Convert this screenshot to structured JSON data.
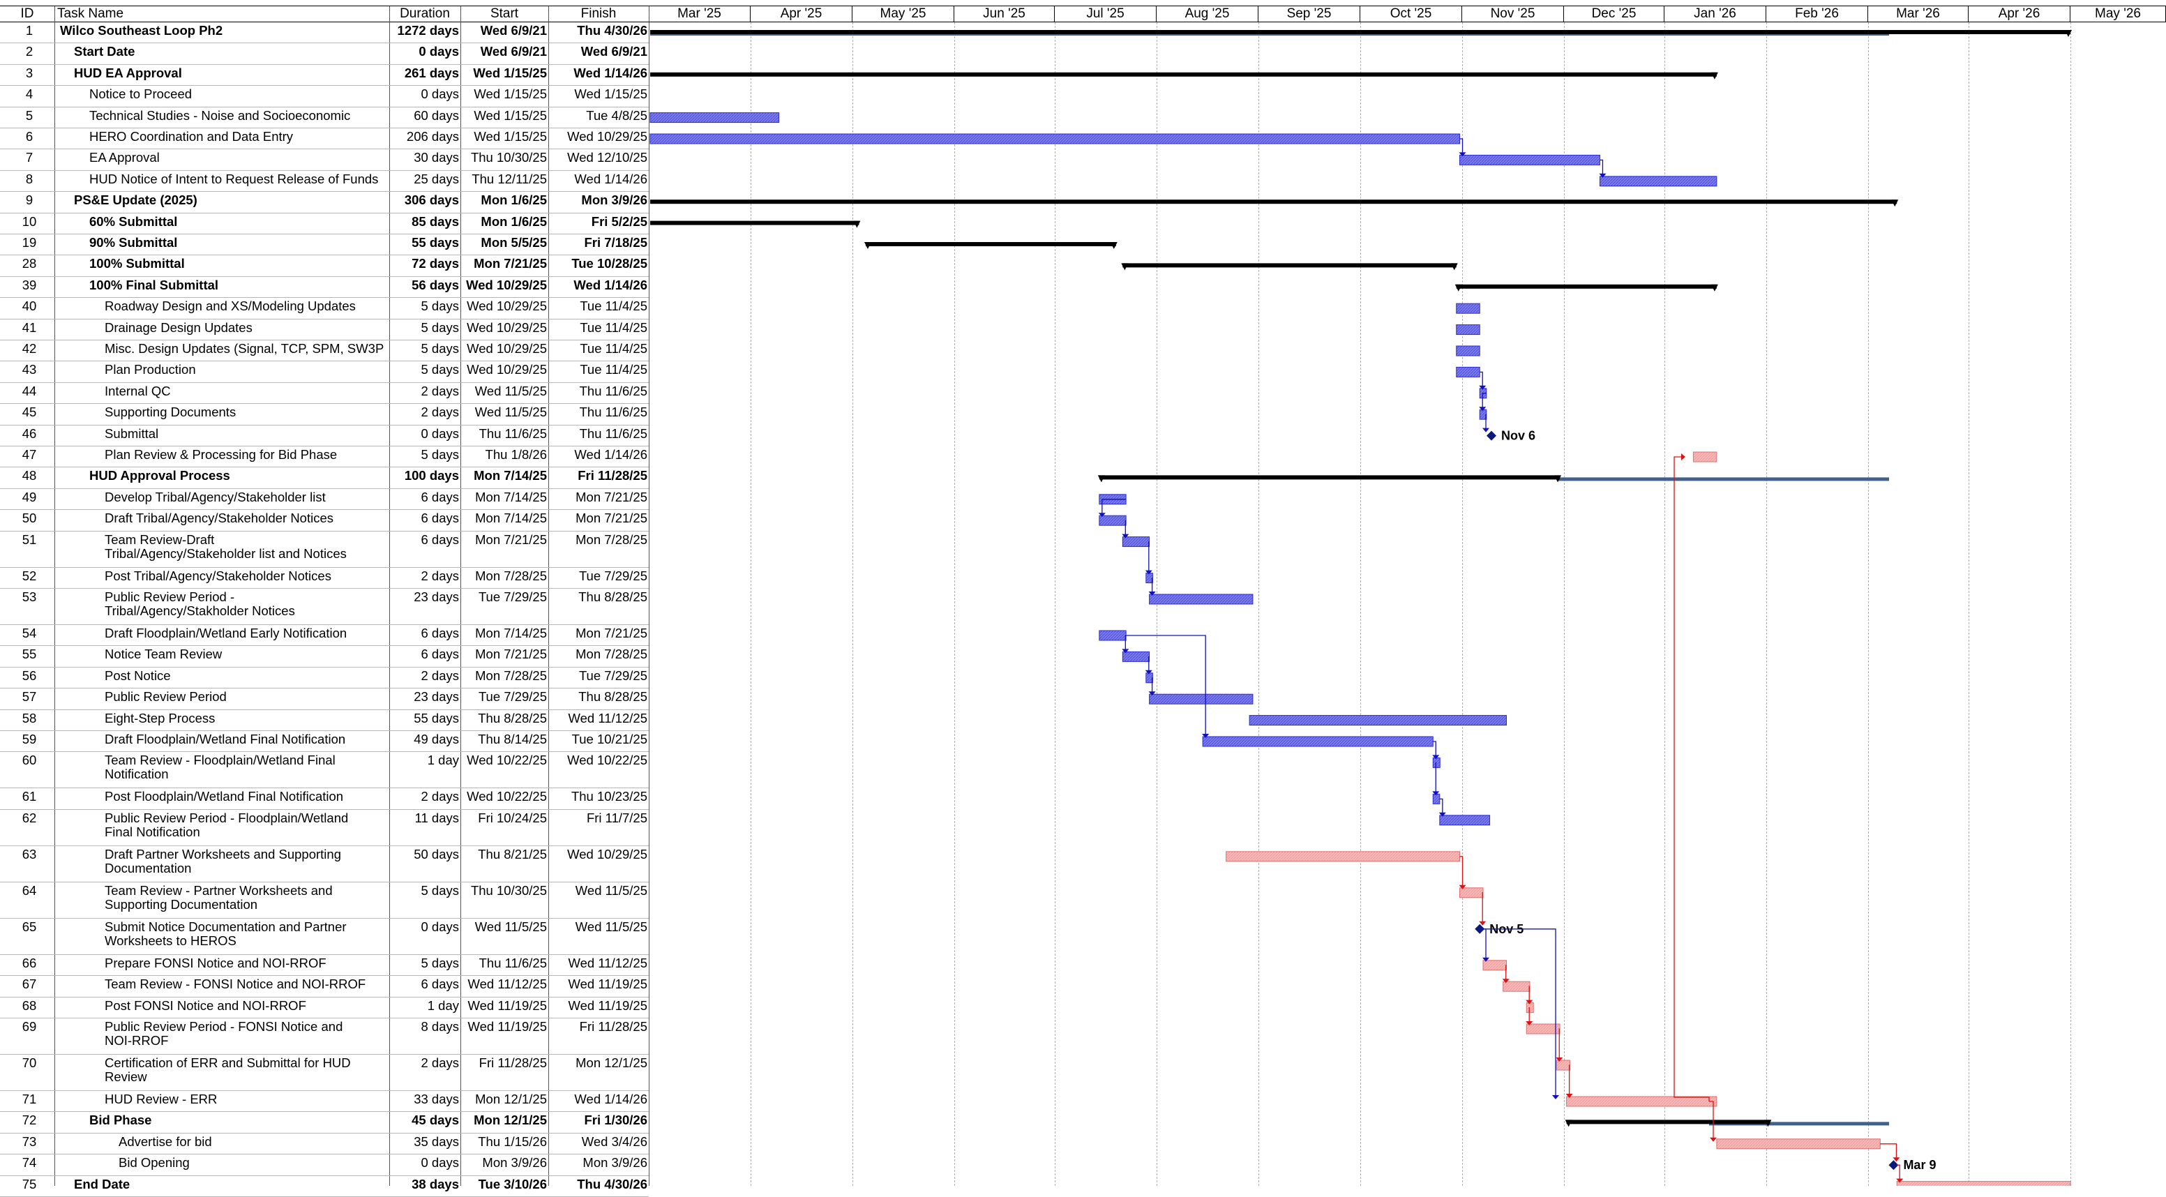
{
  "headers": {
    "id": "ID",
    "name": "Task Name",
    "duration": "Duration",
    "start": "Start",
    "finish": "Finish"
  },
  "timescale": [
    "Mar '25",
    "Apr '25",
    "May '25",
    "Jun '25",
    "Jul '25",
    "Aug '25",
    "Sep '25",
    "Oct '25",
    "Nov '25",
    "Dec '25",
    "Jan '26",
    "Feb '26",
    "Mar '26",
    "Apr '26",
    "May '26"
  ],
  "colors": {
    "task_bar": "#7b7bf0",
    "task_bar_border": "#2a2ad8",
    "critical_bar": "#f8b8b8",
    "critical_border": "#e07070",
    "summary_bar": "#000000",
    "baseline_bar": "#41608c",
    "link_blue": "#1010c0",
    "link_red": "#e01010",
    "milestone": "#0a1a7a"
  },
  "tasks": [
    {
      "id": "1",
      "name": "Wilco Southeast Loop Ph2",
      "duration": "1272 days",
      "start": "Wed 6/9/21",
      "finish": "Thu 4/30/26",
      "bold": true,
      "indent": 0
    },
    {
      "id": "2",
      "name": "Start Date",
      "duration": "0 days",
      "start": "Wed 6/9/21",
      "finish": "Wed 6/9/21",
      "bold": true,
      "indent": 1
    },
    {
      "id": "3",
      "name": "HUD EA Approval",
      "duration": "261 days",
      "start": "Wed 1/15/25",
      "finish": "Wed 1/14/26",
      "bold": true,
      "indent": 1
    },
    {
      "id": "4",
      "name": "Notice to Proceed",
      "duration": "0 days",
      "start": "Wed 1/15/25",
      "finish": "Wed 1/15/25",
      "bold": false,
      "indent": 2
    },
    {
      "id": "5",
      "name": "Technical Studies - Noise and Socioeconomic",
      "duration": "60 days",
      "start": "Wed 1/15/25",
      "finish": "Tue 4/8/25",
      "bold": false,
      "indent": 2
    },
    {
      "id": "6",
      "name": "HERO Coordination and Data Entry",
      "duration": "206 days",
      "start": "Wed 1/15/25",
      "finish": "Wed 10/29/25",
      "bold": false,
      "indent": 2
    },
    {
      "id": "7",
      "name": "EA Approval",
      "duration": "30 days",
      "start": "Thu 10/30/25",
      "finish": "Wed 12/10/25",
      "bold": false,
      "indent": 2
    },
    {
      "id": "8",
      "name": "HUD Notice of Intent to Request Release of Funds",
      "duration": "25 days",
      "start": "Thu 12/11/25",
      "finish": "Wed 1/14/26",
      "bold": false,
      "indent": 2
    },
    {
      "id": "9",
      "name": "PS&E Update (2025)",
      "duration": "306 days",
      "start": "Mon 1/6/25",
      "finish": "Mon 3/9/26",
      "bold": true,
      "indent": 1
    },
    {
      "id": "10",
      "name": "60% Submittal",
      "duration": "85 days",
      "start": "Mon 1/6/25",
      "finish": "Fri 5/2/25",
      "bold": true,
      "indent": 2
    },
    {
      "id": "19",
      "name": "90% Submittal",
      "duration": "55 days",
      "start": "Mon 5/5/25",
      "finish": "Fri 7/18/25",
      "bold": true,
      "indent": 2
    },
    {
      "id": "28",
      "name": "100% Submittal",
      "duration": "72 days",
      "start": "Mon 7/21/25",
      "finish": "Tue 10/28/25",
      "bold": true,
      "indent": 2
    },
    {
      "id": "39",
      "name": "100% Final Submittal",
      "duration": "56 days",
      "start": "Wed 10/29/25",
      "finish": "Wed 1/14/26",
      "bold": true,
      "indent": 2
    },
    {
      "id": "40",
      "name": "Roadway Design and XS/Modeling Updates",
      "duration": "5 days",
      "start": "Wed 10/29/25",
      "finish": "Tue 11/4/25",
      "bold": false,
      "indent": 3
    },
    {
      "id": "41",
      "name": "Drainage Design Updates",
      "duration": "5 days",
      "start": "Wed 10/29/25",
      "finish": "Tue 11/4/25",
      "bold": false,
      "indent": 3
    },
    {
      "id": "42",
      "name": "Misc. Design Updates (Signal, TCP, SPM, SW3P",
      "duration": "5 days",
      "start": "Wed 10/29/25",
      "finish": "Tue 11/4/25",
      "bold": false,
      "indent": 3
    },
    {
      "id": "43",
      "name": "Plan Production",
      "duration": "5 days",
      "start": "Wed 10/29/25",
      "finish": "Tue 11/4/25",
      "bold": false,
      "indent": 3
    },
    {
      "id": "44",
      "name": "Internal QC",
      "duration": "2 days",
      "start": "Wed 11/5/25",
      "finish": "Thu 11/6/25",
      "bold": false,
      "indent": 3
    },
    {
      "id": "45",
      "name": "Supporting Documents",
      "duration": "2 days",
      "start": "Wed 11/5/25",
      "finish": "Thu 11/6/25",
      "bold": false,
      "indent": 3
    },
    {
      "id": "46",
      "name": "Submittal",
      "duration": "0 days",
      "start": "Thu 11/6/25",
      "finish": "Thu 11/6/25",
      "bold": false,
      "indent": 3
    },
    {
      "id": "47",
      "name": "Plan Review & Processing for Bid Phase",
      "duration": "5 days",
      "start": "Thu 1/8/26",
      "finish": "Wed 1/14/26",
      "bold": false,
      "indent": 3
    },
    {
      "id": "48",
      "name": "HUD Approval Process",
      "duration": "100 days",
      "start": "Mon 7/14/25",
      "finish": "Fri 11/28/25",
      "bold": true,
      "indent": 2
    },
    {
      "id": "49",
      "name": "Develop Tribal/Agency/Stakeholder list",
      "duration": "6 days",
      "start": "Mon 7/14/25",
      "finish": "Mon 7/21/25",
      "bold": false,
      "indent": 3
    },
    {
      "id": "50",
      "name": "Draft Tribal/Agency/Stakeholder Notices",
      "duration": "6 days",
      "start": "Mon 7/14/25",
      "finish": "Mon 7/21/25",
      "bold": false,
      "indent": 3
    },
    {
      "id": "51",
      "name": "Team Review-Draft Tribal/Agency/Stakeholder list and Notices",
      "duration": "6 days",
      "start": "Mon 7/21/25",
      "finish": "Mon 7/28/25",
      "bold": false,
      "indent": 3
    },
    {
      "id": "52",
      "name": "Post Tribal/Agency/Stakeholder Notices",
      "duration": "2 days",
      "start": "Mon 7/28/25",
      "finish": "Tue 7/29/25",
      "bold": false,
      "indent": 3
    },
    {
      "id": "53",
      "name": "Public Review Period - Tribal/Agency/Stakholder Notices",
      "duration": "23 days",
      "start": "Tue 7/29/25",
      "finish": "Thu 8/28/25",
      "bold": false,
      "indent": 3
    },
    {
      "id": "54",
      "name": "Draft Floodplain/Wetland Early Notification",
      "duration": "6 days",
      "start": "Mon 7/14/25",
      "finish": "Mon 7/21/25",
      "bold": false,
      "indent": 3
    },
    {
      "id": "55",
      "name": "Notice Team Review",
      "duration": "6 days",
      "start": "Mon 7/21/25",
      "finish": "Mon 7/28/25",
      "bold": false,
      "indent": 3
    },
    {
      "id": "56",
      "name": "Post Notice",
      "duration": "2 days",
      "start": "Mon 7/28/25",
      "finish": "Tue 7/29/25",
      "bold": false,
      "indent": 3
    },
    {
      "id": "57",
      "name": "Public Review Period",
      "duration": "23 days",
      "start": "Tue 7/29/25",
      "finish": "Thu 8/28/25",
      "bold": false,
      "indent": 3
    },
    {
      "id": "58",
      "name": "Eight-Step Process",
      "duration": "55 days",
      "start": "Thu 8/28/25",
      "finish": "Wed 11/12/25",
      "bold": false,
      "indent": 3
    },
    {
      "id": "59",
      "name": "Draft Floodplain/Wetland Final Notification",
      "duration": "49 days",
      "start": "Thu 8/14/25",
      "finish": "Tue 10/21/25",
      "bold": false,
      "indent": 3
    },
    {
      "id": "60",
      "name": "Team Review - Floodplain/Wetland Final Notification",
      "duration": "1 day",
      "start": "Wed 10/22/25",
      "finish": "Wed 10/22/25",
      "bold": false,
      "indent": 3
    },
    {
      "id": "61",
      "name": "Post Floodplain/Wetland Final Notification",
      "duration": "2 days",
      "start": "Wed 10/22/25",
      "finish": "Thu 10/23/25",
      "bold": false,
      "indent": 3
    },
    {
      "id": "62",
      "name": "Public Review Period - Floodplain/Wetland Final Notification",
      "duration": "11 days",
      "start": "Fri 10/24/25",
      "finish": "Fri 11/7/25",
      "bold": false,
      "indent": 3
    },
    {
      "id": "63",
      "name": "Draft Partner Worksheets and Supporting Documentation",
      "duration": "50 days",
      "start": "Thu 8/21/25",
      "finish": "Wed 10/29/25",
      "bold": false,
      "indent": 3
    },
    {
      "id": "64",
      "name": "Team Review - Partner Worksheets and Supporting Documentation",
      "duration": "5 days",
      "start": "Thu 10/30/25",
      "finish": "Wed 11/5/25",
      "bold": false,
      "indent": 3
    },
    {
      "id": "65",
      "name": "Submit Notice Documentation and Partner Worksheets to HEROS",
      "duration": "0 days",
      "start": "Wed 11/5/25",
      "finish": "Wed 11/5/25",
      "bold": false,
      "indent": 3
    },
    {
      "id": "66",
      "name": "Prepare FONSI Notice and NOI-RROF",
      "duration": "5 days",
      "start": "Thu 11/6/25",
      "finish": "Wed 11/12/25",
      "bold": false,
      "indent": 3
    },
    {
      "id": "67",
      "name": "Team Review - FONSI Notice and NOI-RROF",
      "duration": "6 days",
      "start": "Wed 11/12/25",
      "finish": "Wed 11/19/25",
      "bold": false,
      "indent": 3
    },
    {
      "id": "68",
      "name": "Post FONSI Notice and NOI-RROF",
      "duration": "1 day",
      "start": "Wed 11/19/25",
      "finish": "Wed 11/19/25",
      "bold": false,
      "indent": 3
    },
    {
      "id": "69",
      "name": "Public Review Period - FONSI Notice and NOI-RROF",
      "duration": "8 days",
      "start": "Wed 11/19/25",
      "finish": "Fri 11/28/25",
      "bold": false,
      "indent": 3
    },
    {
      "id": "70",
      "name": "Certification of ERR and Submittal for HUD Review",
      "duration": "2 days",
      "start": "Fri 11/28/25",
      "finish": "Mon 12/1/25",
      "bold": false,
      "indent": 3
    },
    {
      "id": "71",
      "name": "HUD Review - ERR",
      "duration": "33 days",
      "start": "Mon 12/1/25",
      "finish": "Wed 1/14/26",
      "bold": false,
      "indent": 3
    },
    {
      "id": "72",
      "name": "Bid Phase",
      "duration": "45 days",
      "start": "Mon 12/1/25",
      "finish": "Fri 1/30/26",
      "bold": true,
      "indent": 2
    },
    {
      "id": "73",
      "name": "Advertise for bid",
      "duration": "35 days",
      "start": "Thu 1/15/26",
      "finish": "Wed 3/4/26",
      "bold": false,
      "indent": 4
    },
    {
      "id": "74",
      "name": "Bid Opening",
      "duration": "0 days",
      "start": "Mon 3/9/26",
      "finish": "Mon 3/9/26",
      "bold": false,
      "indent": 4
    },
    {
      "id": "75",
      "name": "End Date",
      "duration": "38 days",
      "start": "Tue 3/10/26",
      "finish": "Thu 4/30/26",
      "bold": true,
      "indent": 1
    }
  ],
  "milestone_labels": {
    "m46": "Nov 6",
    "m65": "Nov 5",
    "m74": "Mar 9"
  }
}
